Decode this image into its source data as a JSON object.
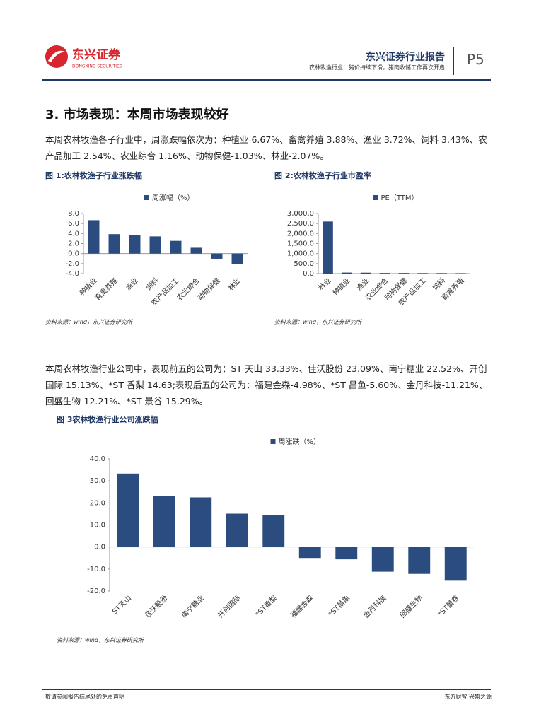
{
  "header": {
    "logo_name": "东兴证券",
    "logo_sub": "DONGXING SECURITIES",
    "report_type": "东兴证券行业报告",
    "subtitle": "农林牧渔行业：猪价持续下滑，猪肉收储工作再次开启",
    "page": "P5"
  },
  "section_title": "3. 市场表现：本周市场表现较好",
  "paragraphs": [
    "本周农林牧渔各子行业中，周涨跌幅依次为：种植业 6.67%、畜禽养殖 3.88%、渔业 3.72%、饲料 3.43%、农产品加工 2.54%、农业综合 1.16%、动物保健-1.03%、林业-2.07%。",
    "本周农林牧渔行业公司中，表现前五的公司为：ST 天山 33.33%、佳沃股份 23.09%、南宁糖业 22.52%、开创国际 15.13%、*ST 香梨 14.63;表现后五的公司为：福建金森-4.98%、*ST 昌鱼-5.60%、金丹科技-11.21%、回盛生物-12.21%、*ST 景谷-15.29%。"
  ],
  "chart_data": [
    {
      "type": "bar",
      "title": "图 1:农林牧渔子行业涨跌幅",
      "source": "资料来源：wind，东兴证券研究所",
      "categories": [
        "种植业",
        "畜禽养殖",
        "渔业",
        "饲料",
        "农产品加工",
        "农业综合",
        "动物保健",
        "林业"
      ],
      "series": [
        {
          "name": "周涨幅（%）",
          "color": "#2b4c7e",
          "values": [
            6.67,
            3.88,
            3.72,
            3.43,
            2.54,
            1.16,
            -1.03,
            -2.07
          ]
        }
      ],
      "ylim": [
        -4,
        8
      ],
      "yticks": [
        {
          "value": -4,
          "label": "-4.0"
        },
        {
          "value": -2,
          "label": "-2.0"
        },
        {
          "value": 0,
          "label": "0.0"
        },
        {
          "value": 2,
          "label": "2.0"
        },
        {
          "value": 4,
          "label": "4.0"
        },
        {
          "value": 6,
          "label": "6.0"
        },
        {
          "value": 8,
          "label": "8.0"
        }
      ]
    },
    {
      "type": "bar",
      "title": "图 2:农林牧渔子行业市盈率",
      "source": "资料来源：wind，东兴证券研究所",
      "categories": [
        "林业",
        "种植业",
        "渔业",
        "农业综合",
        "动物保健",
        "农产品加工",
        "饲料",
        "畜禽养殖"
      ],
      "series": [
        {
          "name": "PE（TTM）",
          "color": "#2b4c7e",
          "values": [
            2600,
            50,
            45,
            30,
            30,
            25,
            25,
            20
          ]
        }
      ],
      "ylim": [
        0,
        3000
      ],
      "yticks": [
        {
          "value": 0,
          "label": "0.0"
        },
        {
          "value": 500,
          "label": "500.0"
        },
        {
          "value": 1000,
          "label": "1,000.0"
        },
        {
          "value": 1500,
          "label": "1,500.0"
        },
        {
          "value": 2000,
          "label": "2,000.0"
        },
        {
          "value": 2500,
          "label": "2,500.0"
        },
        {
          "value": 3000,
          "label": "3,000.0"
        }
      ]
    },
    {
      "type": "bar",
      "title": "图 3农林牧渔行业公司涨跌幅",
      "source": "资料来源：wind，东兴证券研究所",
      "categories": [
        "ST天山",
        "佳沃股份",
        "南宁糖业",
        "开创国际",
        "*ST香梨",
        "福建金森",
        "*ST昌鱼",
        "金丹科技",
        "回盛生物",
        "*ST景谷"
      ],
      "series": [
        {
          "name": "周涨跌（%）",
          "color": "#2b4c7e",
          "values": [
            33.33,
            23.09,
            22.52,
            15.13,
            14.63,
            -4.98,
            -5.6,
            -11.21,
            -12.21,
            -15.29
          ]
        }
      ],
      "ylim": [
        -20,
        40
      ],
      "yticks": [
        {
          "value": -20,
          "label": "-20.0"
        },
        {
          "value": -10,
          "label": "-10.0"
        },
        {
          "value": 0,
          "label": "0.0"
        },
        {
          "value": 10,
          "label": "10.0"
        },
        {
          "value": 20,
          "label": "20.0"
        },
        {
          "value": 30,
          "label": "30.0"
        },
        {
          "value": 40,
          "label": "40.0"
        }
      ]
    }
  ],
  "footer": {
    "left": "敬请参阅报告结尾处的免责声明",
    "right": "东方财智 兴盛之源"
  }
}
